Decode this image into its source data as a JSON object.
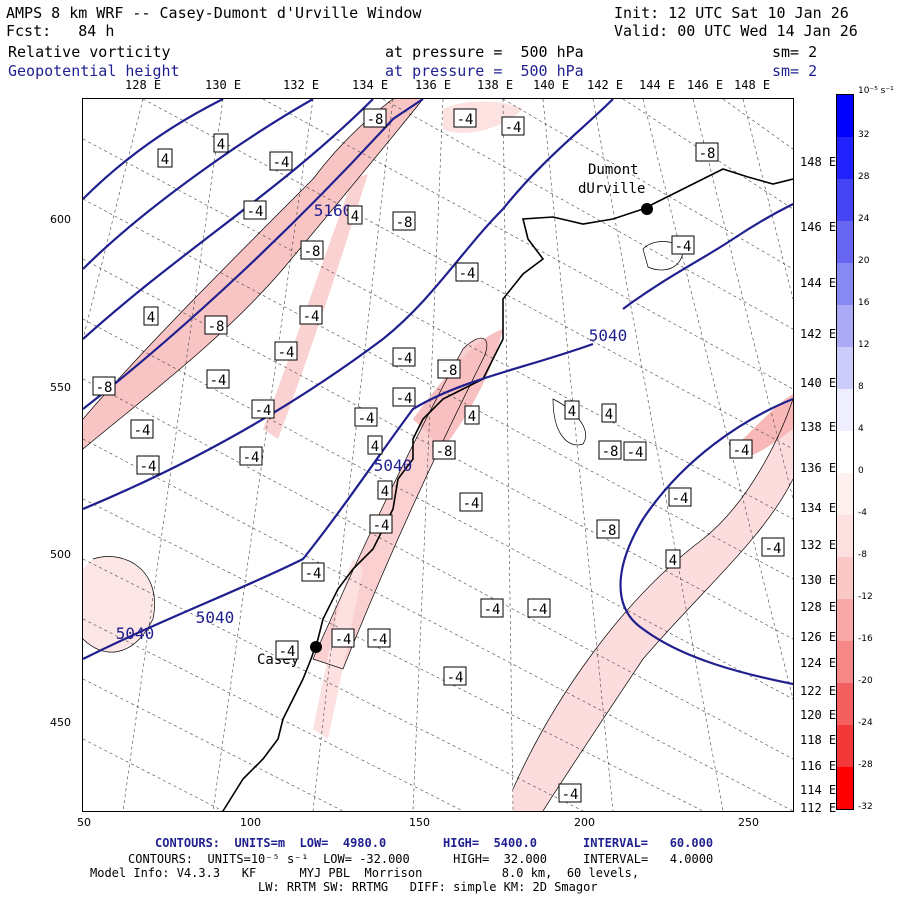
{
  "header": {
    "title": "AMPS 8 km WRF -- Casey-Dumont d'Urville Window",
    "init": "Init: 12 UTC Sat 10 Jan 26",
    "fcst": "Fcst:   84 h",
    "valid": "Valid: 00 UTC Wed 14 Jan 26",
    "field1_name": "Relative vorticity",
    "field1_level": "at pressure =  500 hPa",
    "field1_sm": "sm= 2",
    "field2_name": "Geopotential height",
    "field2_level": "at pressure =  500 hPa",
    "field2_sm": "sm= 2"
  },
  "top_lon_labels": [
    "128 E",
    "130 E",
    "132 E",
    "134 E",
    "136 E",
    "138 E",
    "140 E",
    "142 E",
    "144 E",
    "146 E",
    "148 E"
  ],
  "right_lon_labels": [
    "148 E",
    "146 E",
    "144 E",
    "142 E",
    "140 E",
    "138 E",
    "136 E",
    "134 E",
    "132 E",
    "130 E",
    "128 E",
    "126 E",
    "124 E",
    "122 E",
    "120 E",
    "118 E",
    "116 E",
    "114 E",
    "112 E"
  ],
  "left_y_labels": [
    "600",
    "550",
    "500",
    "450"
  ],
  "bottom_x_labels": [
    "50",
    "100",
    "150",
    "200",
    "250"
  ],
  "stations": [
    {
      "name": "Dumont\ndUrville"
    },
    {
      "name": "Casey"
    }
  ],
  "height_contour_labels": [
    "5160",
    "5040",
    "5040",
    "5040",
    "5040"
  ],
  "vorticity_labels": [
    "4",
    "4",
    "-4",
    "-8",
    "-4",
    "-4",
    "-8",
    "-4",
    "4",
    "-8",
    "-8",
    "-4",
    "4",
    "-4",
    "-8",
    "-4",
    "-8",
    "-4",
    "-4",
    "-4",
    "-4",
    "-4",
    "-8",
    "-4",
    "4",
    "4",
    "4",
    "4",
    "-8",
    "-4",
    "-4",
    "-4",
    "-8",
    "-4",
    "-4",
    "-4",
    "-4",
    "-4",
    "-4",
    "-4",
    "-4",
    "-4",
    "-4",
    "-4",
    "4",
    "4",
    "-4",
    "-8",
    "-4",
    "-4"
  ],
  "colorbar": {
    "unit_label": "10⁻⁵ s⁻¹",
    "ticks": [
      "32",
      "28",
      "24",
      "20",
      "16",
      "12",
      "8",
      "4",
      "0",
      "-4",
      "-8",
      "-12",
      "-16",
      "-20",
      "-24",
      "-28",
      "-32"
    ],
    "colors": [
      "#0000ff",
      "#2222ff",
      "#4444f4",
      "#6666f0",
      "#8888f2",
      "#aaaaf6",
      "#ccccfa",
      "#eeeefe",
      "#ffffff",
      "#fff0f0",
      "#fde0e0",
      "#fbc8c8",
      "#f8a8a8",
      "#f68888",
      "#f46060",
      "#f23838",
      "#ff0000"
    ]
  },
  "footer": {
    "line1_a": "CONTOURS:  UNITS=m  LOW=  4980.0",
    "line1_b": "HIGH=  5400.0",
    "line1_c": "INTERVAL=   60.000",
    "line2": "CONTOURS:  UNITS=10⁻⁵ s⁻¹  LOW= -32.000      HIGH=  32.000     INTERVAL=   4.0000",
    "line3": "Model Info: V4.3.3   KF      MYJ PBL  Morrison           8.0 km,  60 levels,",
    "line4": "LW: RRTM SW: RRTMG   DIFF: simple KM: 2D Smagor"
  }
}
